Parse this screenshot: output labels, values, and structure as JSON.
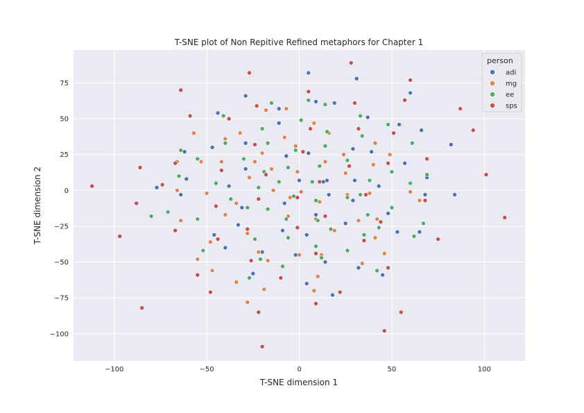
{
  "chart_data": {
    "type": "scatter",
    "title": "T-SNE plot of Non Repitive Refined metaphors for Chapter 1",
    "xlabel": "T-SNE dimension 1",
    "ylabel": "T-SNE dimension 2",
    "xlim": [
      -122,
      122
    ],
    "ylim": [
      -119,
      98
    ],
    "xticks": [
      -100,
      -50,
      0,
      50,
      100
    ],
    "yticks": [
      75,
      50,
      25,
      0,
      -25,
      -50,
      -75,
      -100
    ],
    "xtick_labels": [
      "−100",
      "−50",
      "0",
      "50",
      "100"
    ],
    "ytick_labels": [
      "75",
      "50",
      "25",
      "0",
      "−25",
      "−50",
      "−75",
      "−100"
    ],
    "grid": true,
    "legend": {
      "title": "person",
      "placement": "top-right"
    },
    "series": [
      {
        "name": "adi",
        "color": "#4c72b0",
        "points": [
          [
            5,
            82
          ],
          [
            31,
            78
          ],
          [
            -29,
            66
          ],
          [
            60,
            68
          ],
          [
            -44,
            54
          ],
          [
            -11,
            57
          ],
          [
            19,
            61
          ],
          [
            9,
            62
          ],
          [
            37,
            51
          ],
          [
            54,
            46
          ],
          [
            66,
            42
          ],
          [
            -11,
            47
          ],
          [
            -29,
            33
          ],
          [
            -47,
            30
          ],
          [
            -7,
            24
          ],
          [
            82,
            32
          ],
          [
            29,
            29
          ],
          [
            39,
            27
          ],
          [
            57,
            19
          ],
          [
            5,
            26
          ],
          [
            -62,
            27
          ],
          [
            -29,
            15
          ],
          [
            -38,
            3
          ],
          [
            -61,
            8
          ],
          [
            0,
            7
          ],
          [
            13,
            6
          ],
          [
            15,
            7
          ],
          [
            30,
            7
          ],
          [
            43,
            3
          ],
          [
            69,
            9
          ],
          [
            -77,
            2
          ],
          [
            -64,
            -3
          ],
          [
            16,
            -3
          ],
          [
            29,
            -7
          ],
          [
            -8,
            -9
          ],
          [
            68,
            -3
          ],
          [
            84,
            -3
          ],
          [
            9,
            -17
          ],
          [
            -33,
            -24
          ],
          [
            -9,
            -28
          ],
          [
            4,
            -31
          ],
          [
            -46,
            -31
          ],
          [
            -31,
            -12
          ],
          [
            25,
            -23
          ],
          [
            48,
            -16
          ],
          [
            53,
            -29
          ],
          [
            65,
            -29
          ],
          [
            -40,
            -40
          ],
          [
            -20,
            -43
          ],
          [
            -2,
            -45
          ],
          [
            14,
            -50
          ],
          [
            32,
            -54
          ],
          [
            -25,
            -58
          ],
          [
            45,
            -59
          ],
          [
            4,
            -65
          ],
          [
            18,
            -73
          ]
        ]
      },
      {
        "name": "mg",
        "color": "#dd8452",
        "points": [
          [
            -7,
            57
          ],
          [
            -18,
            56
          ],
          [
            8,
            47
          ],
          [
            -57,
            40
          ],
          [
            -32,
            40
          ],
          [
            -40,
            36
          ],
          [
            -8,
            37
          ],
          [
            16,
            40
          ],
          [
            -2,
            31
          ],
          [
            41,
            33
          ],
          [
            -20,
            26
          ],
          [
            24,
            25
          ],
          [
            49,
            25
          ],
          [
            -53,
            20
          ],
          [
            -42,
            20
          ],
          [
            14,
            20
          ],
          [
            -24,
            20
          ],
          [
            -66,
            20
          ],
          [
            -15,
            15
          ],
          [
            -27,
            9
          ],
          [
            25,
            12
          ],
          [
            -1,
            13
          ],
          [
            40,
            18
          ],
          [
            -66,
            0
          ],
          [
            -14,
            0
          ],
          [
            1,
            -1
          ],
          [
            -50,
            -2
          ],
          [
            26,
            -3
          ],
          [
            60,
            -1
          ],
          [
            38,
            -2
          ],
          [
            -5,
            -5
          ],
          [
            11,
            -8
          ],
          [
            65,
            -7
          ],
          [
            -34,
            -9
          ],
          [
            -64,
            -21
          ],
          [
            -40,
            -17
          ],
          [
            -6,
            -18
          ],
          [
            9,
            -20
          ],
          [
            32,
            -21
          ],
          [
            42,
            -20
          ],
          [
            19,
            -28
          ],
          [
            -28,
            -30
          ],
          [
            -6,
            -33
          ],
          [
            -48,
            -36
          ],
          [
            12,
            -45
          ],
          [
            -22,
            -43
          ],
          [
            0,
            -45
          ],
          [
            -55,
            -48
          ],
          [
            -17,
            -49
          ],
          [
            34,
            -51
          ],
          [
            -47,
            -56
          ],
          [
            10,
            -60
          ],
          [
            -34,
            -64
          ],
          [
            -19,
            -69
          ],
          [
            8,
            -70
          ],
          [
            -28,
            -78
          ],
          [
            46,
            -44
          ],
          [
            41,
            -33
          ]
        ]
      },
      {
        "name": "ee",
        "color": "#55a868",
        "points": [
          [
            5,
            63
          ],
          [
            14,
            60
          ],
          [
            -15,
            61
          ],
          [
            -41,
            52
          ],
          [
            33,
            52
          ],
          [
            1,
            49
          ],
          [
            48,
            46
          ],
          [
            -20,
            43
          ],
          [
            15,
            41
          ],
          [
            -40,
            33
          ],
          [
            -17,
            33
          ],
          [
            61,
            33
          ],
          [
            34,
            38
          ],
          [
            14,
            31
          ],
          [
            -2,
            28
          ],
          [
            -64,
            28
          ],
          [
            -55,
            22
          ],
          [
            -30,
            22
          ],
          [
            -19,
            13
          ],
          [
            11,
            17
          ],
          [
            26,
            21
          ],
          [
            -6,
            16
          ],
          [
            50,
            13
          ],
          [
            60,
            5
          ],
          [
            -65,
            10
          ],
          [
            -45,
            5
          ],
          [
            -22,
            2
          ],
          [
            -11,
            6
          ],
          [
            7,
            6
          ],
          [
            38,
            7
          ],
          [
            69,
            11
          ],
          [
            -37,
            -6
          ],
          [
            -3,
            -4
          ],
          [
            9,
            -7
          ],
          [
            26,
            -5
          ],
          [
            50,
            -12
          ],
          [
            -28,
            -12
          ],
          [
            -17,
            -13
          ],
          [
            -7,
            -20
          ],
          [
            10,
            -21
          ],
          [
            -71,
            -15
          ],
          [
            -80,
            -18
          ],
          [
            -55,
            -20
          ],
          [
            17,
            -27
          ],
          [
            43,
            -26
          ],
          [
            62,
            -32
          ],
          [
            67,
            -23
          ],
          [
            -6,
            -33
          ],
          [
            35,
            -31
          ],
          [
            -24,
            -34
          ],
          [
            -52,
            -42
          ],
          [
            9,
            -39
          ],
          [
            -21,
            -48
          ],
          [
            12,
            -47
          ],
          [
            26,
            -42
          ],
          [
            -9,
            -53
          ],
          [
            -27,
            -61
          ],
          [
            42,
            -56
          ],
          [
            37,
            -17
          ],
          [
            33,
            -3
          ]
        ]
      },
      {
        "name": "sps",
        "color": "#c44e52",
        "points": [
          [
            -27,
            82
          ],
          [
            28,
            89
          ],
          [
            -64,
            70
          ],
          [
            5,
            69
          ],
          [
            60,
            77
          ],
          [
            57,
            63
          ],
          [
            87,
            57
          ],
          [
            -23,
            59
          ],
          [
            -59,
            52
          ],
          [
            -38,
            50
          ],
          [
            30,
            61
          ],
          [
            32,
            43
          ],
          [
            6,
            43
          ],
          [
            51,
            40
          ],
          [
            94,
            42
          ],
          [
            -24,
            32
          ],
          [
            69,
            22
          ],
          [
            -67,
            19
          ],
          [
            48,
            19
          ],
          [
            -86,
            16
          ],
          [
            -42,
            14
          ],
          [
            27,
            17
          ],
          [
            -18,
            11
          ],
          [
            101,
            11
          ],
          [
            2,
            27
          ],
          [
            -112,
            3
          ],
          [
            -74,
            4
          ],
          [
            11,
            6
          ],
          [
            -22,
            -6
          ],
          [
            -1,
            -5
          ],
          [
            68,
            -7
          ],
          [
            -45,
            -11
          ],
          [
            36,
            -3
          ],
          [
            -88,
            -9
          ],
          [
            111,
            -19
          ],
          [
            -67,
            -28
          ],
          [
            -28,
            -27
          ],
          [
            -1,
            -26
          ],
          [
            14,
            -18
          ],
          [
            44,
            -22
          ],
          [
            -97,
            -32
          ],
          [
            -44,
            -34
          ],
          [
            35,
            -35
          ],
          [
            75,
            -34
          ],
          [
            -26,
            -49
          ],
          [
            9,
            -44
          ],
          [
            48,
            -54
          ],
          [
            -55,
            -59
          ],
          [
            -10,
            -61
          ],
          [
            -48,
            -71
          ],
          [
            22,
            -71
          ],
          [
            9,
            -79
          ],
          [
            -85,
            -82
          ],
          [
            -22,
            -85
          ],
          [
            55,
            -85
          ],
          [
            46,
            -98
          ],
          [
            -20,
            -109
          ]
        ]
      }
    ]
  }
}
